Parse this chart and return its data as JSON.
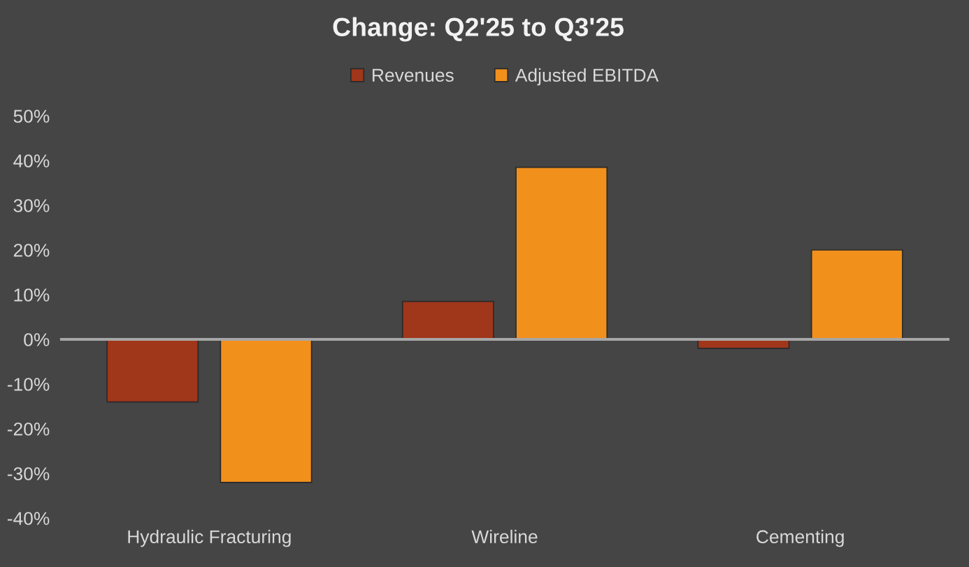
{
  "chart_data": {
    "type": "bar",
    "title": "Change: Q2'25 to Q3'25",
    "categories": [
      "Hydraulic Fracturing",
      "Wireline",
      "Cementing"
    ],
    "series": [
      {
        "name": "Revenues",
        "color": "#a0361a",
        "values": [
          -14,
          8.5,
          -2
        ]
      },
      {
        "name": "Adjusted EBITDA",
        "color": "#f2901c",
        "values": [
          -32,
          38.5,
          20
        ]
      }
    ],
    "ylim": [
      -40,
      50
    ],
    "yticks": [
      {
        "value": 50,
        "label": "50%"
      },
      {
        "value": 40,
        "label": "40%"
      },
      {
        "value": 30,
        "label": "30%"
      },
      {
        "value": 20,
        "label": "20%"
      },
      {
        "value": 10,
        "label": "10%"
      },
      {
        "value": 0,
        "label": "0%"
      },
      {
        "value": -10,
        "label": "-10%"
      },
      {
        "value": -20,
        "label": "-20%"
      },
      {
        "value": -30,
        "label": "-30%"
      },
      {
        "value": -40,
        "label": "-40%"
      }
    ],
    "legend": "top"
  }
}
